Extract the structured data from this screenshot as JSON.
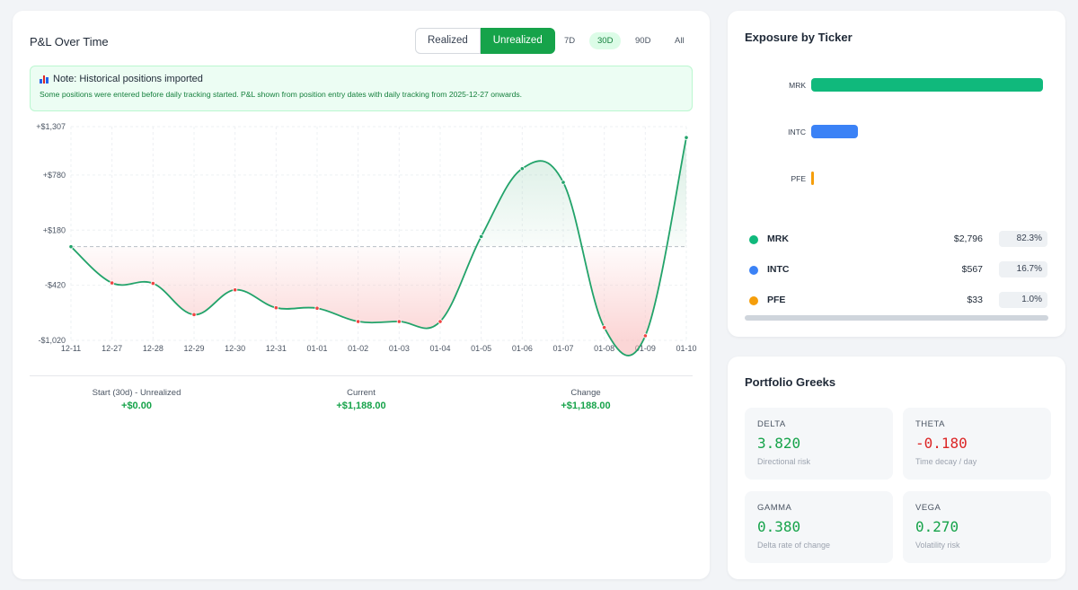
{
  "pnl": {
    "title": "P&L Over Time",
    "mode_buttons": [
      "Realized",
      "Unrealized"
    ],
    "active_mode": "Unrealized",
    "ranges": [
      "7D",
      "30D",
      "90D",
      "All"
    ],
    "active_range": "30D",
    "note": {
      "icon": "bar-chart-icon",
      "title": "Note: Historical positions imported",
      "text": "Some positions were entered before daily tracking started. P&L shown from position entry dates with daily tracking from 2025-12-27 onwards."
    },
    "stats": [
      {
        "label": "Start (30d) - Unrealized",
        "value": "+$0.00"
      },
      {
        "label": "Current",
        "value": "+$1,188.00"
      },
      {
        "label": "Change",
        "value": "+$1,188.00"
      }
    ]
  },
  "chart_data": {
    "type": "line",
    "title": "",
    "xlabel": "",
    "ylabel": "",
    "x": [
      "12-11",
      "12-27",
      "12-28",
      "12-29",
      "12-30",
      "12-31",
      "01-01",
      "01-02",
      "01-03",
      "01-04",
      "01-05",
      "01-06",
      "01-07",
      "01-08",
      "01-09",
      "01-10"
    ],
    "y": [
      0,
      -395,
      -400,
      -740,
      -470,
      -665,
      -670,
      -815,
      -815,
      -815,
      110,
      850,
      700,
      -880,
      -970,
      1188
    ],
    "ytick_labels": [
      "+$1,307",
      "+$780",
      "+$180",
      "-$420",
      "-$1,020"
    ],
    "ytick_values": [
      1307,
      780,
      180,
      -420,
      -1020
    ],
    "ylim": [
      -1020,
      1307
    ],
    "baseline": 0,
    "grid": true,
    "colors": {
      "line": "#22a36a",
      "positive_fill": "#86c9a8",
      "negative_fill": "#f8b4b4",
      "marker_neg": "#ef4444",
      "marker_pos": "#22a36a"
    }
  },
  "exposure": {
    "title": "Exposure by Ticker",
    "bars": [
      {
        "ticker": "MRK",
        "value": 2796,
        "color": "#10b97c"
      },
      {
        "ticker": "INTC",
        "value": 567,
        "color": "#3b82f6"
      },
      {
        "ticker": "PFE",
        "value": 33,
        "color": "#f59e0b"
      }
    ],
    "legend": [
      {
        "ticker": "MRK",
        "amount": "$2,796",
        "pct": "82.3%",
        "color": "#10b97c"
      },
      {
        "ticker": "INTC",
        "amount": "$567",
        "pct": "16.7%",
        "color": "#3b82f6"
      },
      {
        "ticker": "PFE",
        "amount": "$33",
        "pct": "1.0%",
        "color": "#f59e0b"
      }
    ]
  },
  "greeks": {
    "title": "Portfolio Greeks",
    "items": [
      {
        "label": "DELTA",
        "value": "3.820",
        "sub": "Directional risk",
        "color": "#16a34a"
      },
      {
        "label": "THETA",
        "value": "-0.180",
        "sub": "Time decay / day",
        "color": "#dc2626"
      },
      {
        "label": "GAMMA",
        "value": "0.380",
        "sub": "Delta rate of change",
        "color": "#16a34a"
      },
      {
        "label": "VEGA",
        "value": "0.270",
        "sub": "Volatility risk",
        "color": "#16a34a"
      }
    ]
  }
}
